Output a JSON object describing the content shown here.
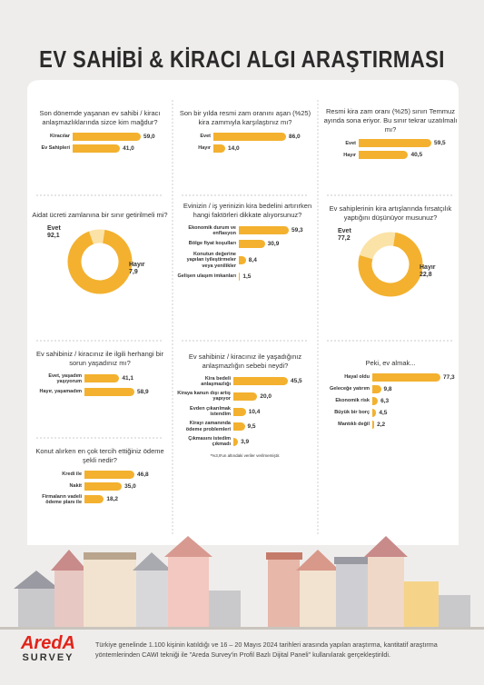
{
  "title": "EV SAHİBİ & KİRACI ALGI ARAŞTIRMASI",
  "chart_data": [
    {
      "type": "bar",
      "title": "Son dönemde yaşanan ev sahibi / kiracı anlaşmazlıklarında sizce kim mağdur?",
      "categories": [
        "Kiracılar",
        "Ev Sahipleri"
      ],
      "values": [
        59,
        41
      ],
      "value_labels": [
        "59,0",
        "41,0"
      ],
      "color": "#f3b12f"
    },
    {
      "type": "bar",
      "title": "Son bir yılda resmi zam oranını aşan (%25) kira zammıyla karşılaştınız mı?",
      "categories": [
        "Evet",
        "Hayır"
      ],
      "values": [
        86,
        14
      ],
      "value_labels": [
        "86,0",
        "14,0"
      ],
      "color": "#f3b12f"
    },
    {
      "type": "bar",
      "title": "Resmi kira zam oranı (%25) sınırı Temmuz ayında sona eriyor. Bu sınır tekrar uzatılmalı mı?",
      "categories": [
        "Evet",
        "Hayır"
      ],
      "values": [
        59.5,
        40.5
      ],
      "value_labels": [
        "59,5",
        "40,5"
      ],
      "color": "#f3b12f"
    },
    {
      "type": "pie",
      "title": "Aidat ücreti zamlanına bir sınır getirilmeli mi?",
      "categories": [
        "Evet",
        "Hayır"
      ],
      "values": [
        92.1,
        7.9
      ],
      "value_labels": [
        "92,1",
        "7,9"
      ],
      "colors": [
        "#f3b12f",
        "#fbe2a6"
      ]
    },
    {
      "type": "bar",
      "title": "Evinizin / iş yerinizin kira bedelini artırırken hangi faktörleri dikkate alıyorsunuz?",
      "categories": [
        "Ekonomik durum ve enflasyon",
        "Bölge fiyat koşulları",
        "Konutun değerine yapılan iyileştirmeler veya yenilikler",
        "Gelişen ulaşım imkanları"
      ],
      "values": [
        59.3,
        30.9,
        8.4,
        1.5
      ],
      "value_labels": [
        "59,3",
        "30,9",
        "8,4",
        "1,5"
      ],
      "color": "#f3b12f"
    },
    {
      "type": "pie",
      "title": "Ev sahiplerinin kira artışlarında fırsatçılık yaptığını düşünüyor musunuz?",
      "categories": [
        "Evet",
        "Hayır"
      ],
      "values": [
        77.2,
        22.8
      ],
      "value_labels": [
        "77,2",
        "22,8"
      ],
      "colors": [
        "#f3b12f",
        "#fbe2a6"
      ]
    },
    {
      "type": "bar",
      "title": "Ev sahibiniz / kiracınız ile ilgili herhangi bir sorun yaşadınız mı?",
      "categories": [
        "Evet, yaşadım yaşıyorum",
        "Hayır, yaşamadım"
      ],
      "values": [
        41.1,
        58.9
      ],
      "value_labels": [
        "41,1",
        "58,9"
      ],
      "color": "#f3b12f"
    },
    {
      "type": "bar",
      "title": "Ev sahibiniz / kiracınız ile yaşadığınız anlaşmazlığın sebebi neydi?",
      "categories": [
        "Kira bedeli anlaşmazlığı",
        "Kiraya kanun dışı artış yapıyor",
        "Evden çıkarılmak istendim",
        "Kirayı zamanında ödeme problemleri",
        "Çıkmasını istedim çıkmadı"
      ],
      "values": [
        45.5,
        20,
        10.4,
        9.5,
        3.9
      ],
      "value_labels": [
        "45,5",
        "20,0",
        "10,4",
        "9,5",
        "3,9"
      ],
      "color": "#f3b12f",
      "note": "*%3,9'un altındaki veriler verilmemiştir."
    },
    {
      "type": "bar",
      "title": "Peki, ev almak...",
      "categories": [
        "Hayal oldu",
        "Geleceğe yatırım",
        "Ekonomik risk",
        "Büyük bir borç",
        "Mantıklı değil"
      ],
      "values": [
        77.3,
        9.8,
        6.3,
        4.5,
        2.2
      ],
      "value_labels": [
        "77,3",
        "9,8",
        "6,3",
        "4,5",
        "2,2"
      ],
      "color": "#f3b12f"
    },
    {
      "type": "bar",
      "title": "Konut alırken en çok tercih ettiğiniz ödeme şekli nedir?",
      "categories": [
        "Kredi ile",
        "Nakit",
        "Firmaların vadeli ödeme planı ile"
      ],
      "values": [
        46.8,
        35,
        18.2
      ],
      "value_labels": [
        "46,8",
        "35,0",
        "18,2"
      ],
      "color": "#f3b12f"
    }
  ],
  "footer": {
    "logo": "AredA",
    "logo_sub": "SURVEY",
    "text": "Türkiye genelinde 1.100 kişinin katıldığı ve 16 – 20 Mayıs 2024 tarihleri arasında yapılan araştırma, kantitatif araştırma yöntemlerinden CAWI tekniği ile \"Areda Survey'in Profil Bazlı Dijital Paneli\" kullanılarak gerçekleştirildi."
  }
}
